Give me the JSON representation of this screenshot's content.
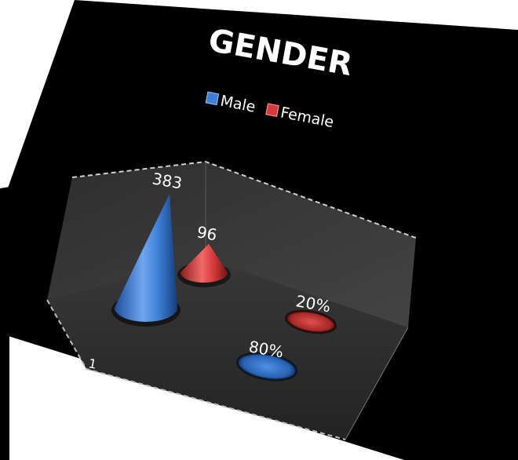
{
  "chart_data": {
    "type": "bar",
    "style": "3d-cone",
    "title": "GENDER",
    "categories": [
      "1"
    ],
    "series": [
      {
        "name": "Male",
        "values": [
          383
        ],
        "percent_label": "80%",
        "color": "#3d7fd6"
      },
      {
        "name": "Female",
        "values": [
          96
        ],
        "percent_label": "20%",
        "color": "#d63a3a"
      }
    ],
    "legend_position": "top",
    "grid": false,
    "colors": {
      "background": "#000000",
      "wall": "#3a3a3a",
      "floor": "#2b2b2b",
      "text": "#ffffff"
    }
  }
}
